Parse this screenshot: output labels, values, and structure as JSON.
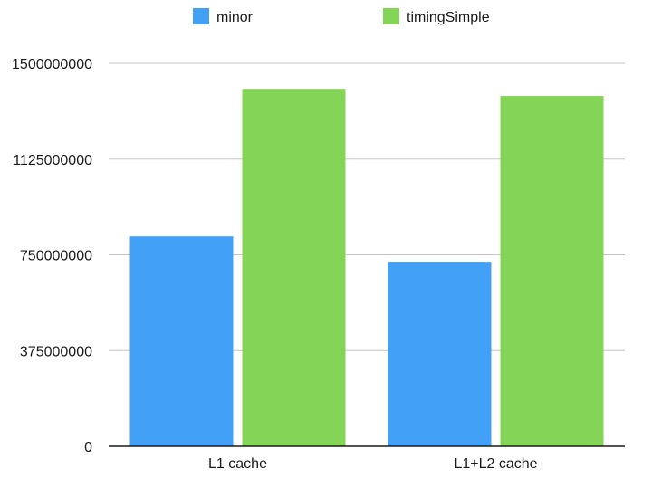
{
  "chart_data": {
    "type": "bar",
    "categories": [
      "L1 cache",
      "L1+L2 cache"
    ],
    "series": [
      {
        "name": "minor",
        "color": "#42a1f7",
        "values": [
          822000000,
          723000000
        ]
      },
      {
        "name": "timingSimple",
        "color": "#84d457",
        "values": [
          1400000000,
          1372000000
        ]
      }
    ],
    "yticks": [
      "0",
      "375000000",
      "750000000",
      "1125000000",
      "1500000000"
    ],
    "ylim": [
      0,
      1500000000
    ],
    "grid": true,
    "legend_position": "top"
  }
}
